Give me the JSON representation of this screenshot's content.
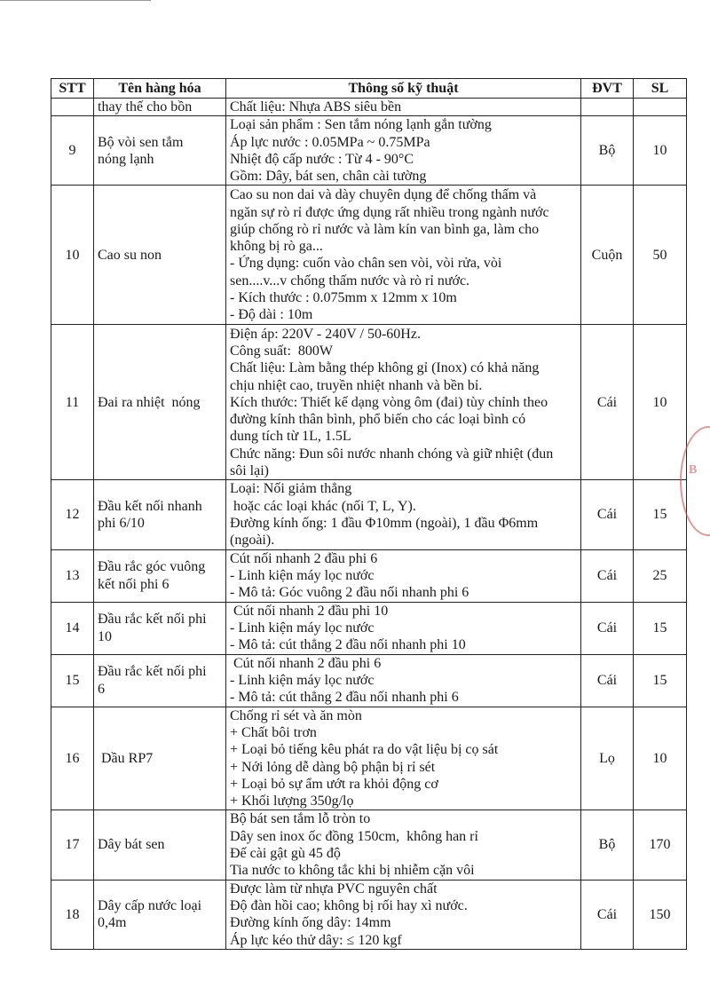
{
  "table": {
    "headers": [
      "STT",
      "Tên hàng hóa",
      "Thông số kỹ thuật",
      "ĐVT",
      "SL"
    ],
    "rows": [
      {
        "stt": "",
        "name": [
          "thay thế cho bồn"
        ],
        "spec": [
          "Chất liệu: Nhựa ABS siêu bền"
        ],
        "unit": "",
        "qty": ""
      },
      {
        "stt": "9",
        "name": [
          "Bộ vòi sen tắm",
          "nóng lạnh"
        ],
        "spec": [
          "Loại sản phẩm : Sen tắm nóng lạnh gắn tường",
          "Áp lực nước : 0.05MPa ~ 0.75MPa",
          "Nhiệt độ cấp nước : Từ 4 - 90°C",
          "Gồm: Dây, bát sen, chân cài tường"
        ],
        "unit": "Bộ",
        "qty": "10"
      },
      {
        "stt": "10",
        "name": [
          "Cao su non"
        ],
        "spec": [
          "Cao su non dai và dày chuyên dụng để chống thấm và",
          "ngăn sự rò rỉ được ứng dụng rất nhiều trong ngành nước",
          "giúp chống rò rỉ nước và làm kín van bình ga, làm cho",
          "không bị rò ga...",
          "- Ứng dụng: cuốn vào chân sen vòi, vòi rửa, vòi",
          "sen....v...v chống thấm nước và rò rỉ nước.",
          "- Kích thước : 0.075mm x 12mm x 10m",
          "- Độ dài : 10m"
        ],
        "unit": "Cuộn",
        "qty": "50"
      },
      {
        "stt": "11",
        "name": [
          "Đai ra nhiệt  nóng"
        ],
        "spec": [
          "Điện áp: 220V - 240V / 50-60Hz.",
          "Công suất:  800W",
          "Chất liệu: Làm bằng thép không gỉ (Inox) có khả năng",
          "chịu nhiệt cao, truyền nhiệt nhanh và bền bỉ.",
          "Kích thước: Thiết kế dạng vòng ôm (đai) tùy chỉnh theo",
          "đường kính thân bình, phổ biến cho các loại bình có",
          "dung tích từ 1L, 1.5L",
          "Chức năng: Đun sôi nước nhanh chóng và giữ nhiệt (đun",
          "sôi lại)"
        ],
        "unit": "Cái",
        "qty": "10"
      },
      {
        "stt": "12",
        "name": [
          "Đầu kết nối nhanh",
          "phi 6/10"
        ],
        "spec": [
          "Loại: Nối giảm thẳng",
          " hoặc các loại khác (nối T, L, Y).",
          "Đường kính ống: 1 đầu Φ10mm (ngoài), 1 đầu Φ6mm",
          "(ngoài)."
        ],
        "unit": "Cái",
        "qty": "15"
      },
      {
        "stt": "13",
        "name": [
          "Đầu rắc góc vuông",
          "kết nối phi 6"
        ],
        "spec": [
          "Cút nối nhanh 2 đầu phi 6",
          "- Linh kiện máy lọc nước",
          "- Mô tả: Góc vuông 2 đầu nối nhanh phi 6"
        ],
        "unit": "Cái",
        "qty": "25"
      },
      {
        "stt": "14",
        "name": [
          "Đầu rắc kết nối phi",
          "10"
        ],
        "spec": [
          " Cút nối nhanh 2 đầu phi 10",
          "- Linh kiện máy lọc nước",
          "- Mô tả: cút thẳng 2 đầu nối nhanh phi 10"
        ],
        "unit": "Cái",
        "qty": "15"
      },
      {
        "stt": "15",
        "name": [
          "Đầu rắc kết nối phi",
          "6"
        ],
        "spec": [
          " Cút nối nhanh 2 đầu phi 6",
          "- Linh kiện máy lọc nước",
          "- Mô tả: cút thẳng 2 đầu nối nhanh phi 6"
        ],
        "unit": "Cái",
        "qty": "15"
      },
      {
        "stt": "16",
        "name": [
          " Dầu RP7"
        ],
        "spec": [
          "Chống rỉ sét và ăn mòn",
          "+ Chất bôi trơn",
          "+ Loại bỏ tiếng kêu phát ra do vật liệu bị cọ sát",
          "+ Nới lỏng dễ dàng bộ phận bị rỉ sét",
          "+ Loại bỏ sự ẩm ướt ra khỏi động cơ",
          "+ Khối lượng 350g/lọ"
        ],
        "unit": "Lọ",
        "qty": "10"
      },
      {
        "stt": "17",
        "name": [
          "Dây bát sen"
        ],
        "spec": [
          "Bộ bát sen tắm lỗ tròn to",
          "Dây sen inox ốc đồng 150cm,  không han rỉ",
          "Đế cài gật gù 45 độ",
          "Tia nước to không tắc khi bị nhiễm cặn vôi"
        ],
        "unit": "Bộ",
        "qty": "170"
      },
      {
        "stt": "18",
        "name": [
          "Dây cấp nước loại",
          "0,4m"
        ],
        "spec": [
          "Được làm từ nhựa PVC nguyên chất",
          "Độ đàn hồi cao; không bị rối hay xì nước.",
          "Đường kính ống dây: 14mm",
          "Áp lực kéo thử dây: ≤ 120 kgf"
        ],
        "unit": "Cái",
        "qty": "150"
      }
    ]
  },
  "stamp": {
    "text": "B",
    "color": "#cc5555"
  }
}
